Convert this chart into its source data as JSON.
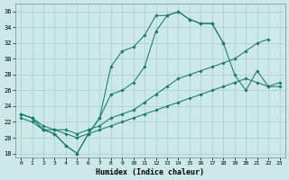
{
  "lines": [
    {
      "x": [
        0,
        1,
        2,
        3,
        4,
        5,
        6,
        7,
        8,
        9,
        10,
        11,
        12,
        13,
        14,
        15,
        16,
        17,
        18
      ],
      "y": [
        23,
        22.5,
        21,
        20.5,
        19,
        18,
        20.5,
        22.5,
        29,
        31,
        31.5,
        33,
        35.5,
        35.5,
        36,
        35,
        34.5,
        34.5,
        32
      ]
    },
    {
      "x": [
        0,
        1,
        2,
        3,
        4,
        5,
        6,
        7,
        8,
        9,
        10,
        11,
        12,
        13,
        14,
        15,
        16,
        17,
        18,
        19,
        20,
        21,
        22,
        23
      ],
      "y": [
        23,
        22.5,
        21,
        20.5,
        19,
        18,
        20.5,
        22.5,
        25.5,
        26,
        27,
        29,
        33.5,
        35.5,
        36,
        35,
        34.5,
        34.5,
        32,
        28,
        26,
        28.5,
        26.5,
        26.5
      ]
    },
    {
      "x": [
        0,
        1,
        2,
        3,
        4,
        5,
        6,
        7,
        8,
        9,
        10,
        11,
        12,
        13,
        14,
        15,
        16,
        17,
        18,
        19,
        20,
        21,
        22,
        23
      ],
      "y": [
        22.5,
        22,
        21,
        21,
        20.5,
        20,
        20.5,
        21,
        21.5,
        22,
        22.5,
        23,
        23.5,
        24,
        24.5,
        25,
        25.5,
        26,
        26.5,
        27,
        27.5,
        27,
        26.5,
        27
      ]
    },
    {
      "x": [
        0,
        1,
        2,
        3,
        4,
        5,
        6,
        7,
        8,
        9,
        10,
        11,
        12,
        13,
        14,
        15,
        16,
        17,
        18,
        19,
        20,
        21,
        22
      ],
      "y": [
        23,
        22.5,
        21.5,
        21,
        21,
        20.5,
        21,
        21.5,
        22.5,
        23,
        23.5,
        24.5,
        25.5,
        26.5,
        27.5,
        28,
        28.5,
        29,
        29.5,
        30,
        31,
        32,
        32.5
      ]
    }
  ],
  "color": "#1a7a6e",
  "bg_color": "#cce8e8",
  "grid_color": "#aacece",
  "xlim": [
    -0.5,
    23.5
  ],
  "ylim": [
    17.5,
    37
  ],
  "yticks": [
    18,
    20,
    22,
    24,
    26,
    28,
    30,
    32,
    34,
    36
  ],
  "xticks": [
    0,
    1,
    2,
    3,
    4,
    5,
    6,
    7,
    8,
    9,
    10,
    11,
    12,
    13,
    14,
    15,
    16,
    17,
    18,
    19,
    20,
    21,
    22,
    23
  ],
  "xlabel": "Humidex (Indice chaleur)"
}
